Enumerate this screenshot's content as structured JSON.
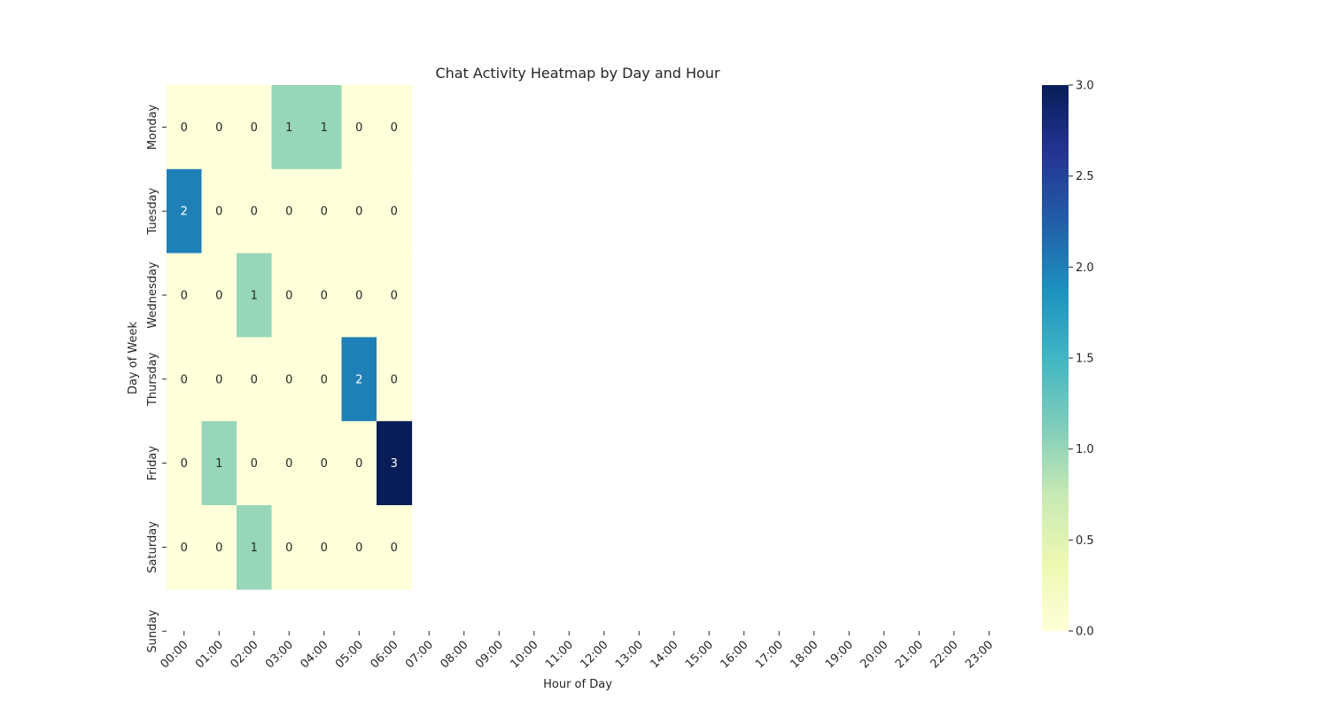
{
  "chart_data": {
    "type": "heatmap",
    "title": "Chat Activity Heatmap by Day and Hour",
    "xlabel": "Hour of Day",
    "ylabel": "Day of Week",
    "x_categories": [
      "00:00",
      "01:00",
      "02:00",
      "03:00",
      "04:00",
      "05:00",
      "06:00",
      "07:00",
      "08:00",
      "09:00",
      "10:00",
      "11:00",
      "12:00",
      "13:00",
      "14:00",
      "15:00",
      "16:00",
      "17:00",
      "18:00",
      "19:00",
      "20:00",
      "21:00",
      "22:00",
      "23:00"
    ],
    "y_categories": [
      "Monday",
      "Tuesday",
      "Wednesday",
      "Thursday",
      "Friday",
      "Saturday",
      "Sunday"
    ],
    "data_x_categories": [
      "00:00",
      "01:00",
      "02:00",
      "03:00",
      "04:00",
      "05:00",
      "06:00"
    ],
    "data_y_categories": [
      "Monday",
      "Tuesday",
      "Wednesday",
      "Thursday",
      "Friday",
      "Saturday"
    ],
    "values": [
      [
        0,
        0,
        0,
        1,
        1,
        0,
        0
      ],
      [
        2,
        0,
        0,
        0,
        0,
        0,
        0
      ],
      [
        0,
        0,
        1,
        0,
        0,
        0,
        0
      ],
      [
        0,
        0,
        0,
        0,
        0,
        2,
        0
      ],
      [
        0,
        1,
        0,
        0,
        0,
        0,
        3
      ],
      [
        0,
        0,
        1,
        0,
        0,
        0,
        0
      ]
    ],
    "colorscale": "YlGnBu",
    "color_range": [
      0,
      3
    ],
    "colorbar_ticks": [
      "0.0",
      "0.5",
      "1.0",
      "1.5",
      "2.0",
      "2.5",
      "3.0"
    ],
    "annotations": true,
    "grid": false
  }
}
